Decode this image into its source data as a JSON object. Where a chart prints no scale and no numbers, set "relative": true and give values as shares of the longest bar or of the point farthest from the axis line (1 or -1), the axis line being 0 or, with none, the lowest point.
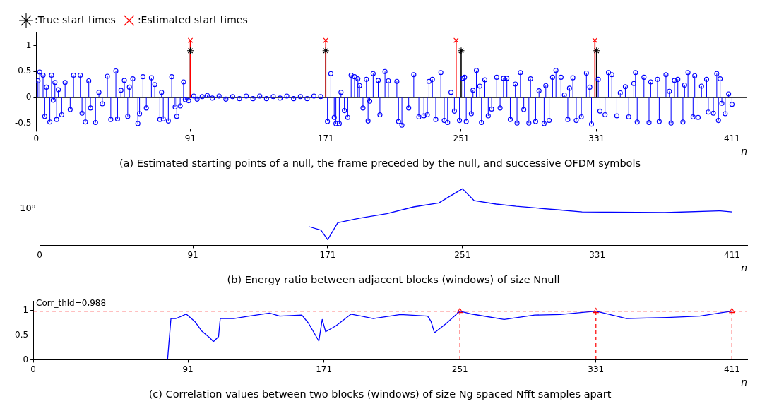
{
  "chart_data": [
    {
      "type": "lollipop",
      "title": "(a) Estimated starting points of a null, the frame preceded by the null, and successive OFDM symbols",
      "xlabel": "n",
      "legend": "top left",
      "xlim": [
        0,
        420
      ],
      "xticks": [
        0,
        91,
        171,
        251,
        331,
        411
      ],
      "ylim": [
        -0.6,
        1.25
      ],
      "yticks": [
        -0.5,
        0,
        0.5,
        1
      ],
      "series": [
        {
          "color": "#0000ff",
          "marker": "circle",
          "x": [
            1,
            2,
            4,
            5,
            6,
            8,
            9,
            10,
            11,
            12,
            13,
            15,
            17,
            20,
            22,
            26,
            27,
            29,
            31,
            32,
            35,
            37,
            39,
            42,
            44,
            47,
            48,
            50,
            52,
            54,
            55,
            57,
            60,
            61,
            63,
            65,
            68,
            70,
            73,
            74,
            75,
            78,
            80,
            82,
            83,
            85,
            87,
            88,
            90,
            93,
            95,
            98,
            101,
            104,
            108,
            112,
            116,
            120,
            124,
            128,
            132,
            136,
            140,
            144,
            148,
            152,
            156,
            160,
            164,
            168,
            172,
            174,
            176,
            177,
            179,
            180,
            182,
            184,
            186,
            188,
            190,
            191,
            193,
            195,
            196,
            197,
            199,
            202,
            203,
            206,
            208,
            213,
            214,
            216,
            220,
            223,
            226,
            229,
            231,
            232,
            234,
            236,
            239,
            241,
            243,
            245,
            247,
            250,
            252,
            253,
            254,
            257,
            258,
            260,
            262,
            263,
            265,
            267,
            269,
            272,
            274,
            276,
            278,
            280,
            283,
            284,
            286,
            288,
            291,
            292,
            295,
            297,
            300,
            301,
            303,
            305,
            307,
            310,
            312,
            314,
            315,
            317,
            319,
            322,
            325,
            327,
            328,
            332,
            333,
            336,
            338,
            340,
            343,
            345,
            348,
            350,
            353,
            354,
            355,
            359,
            362,
            363,
            367,
            368,
            372,
            374,
            375,
            377,
            379,
            382,
            383,
            385,
            388,
            389,
            391,
            393,
            396,
            397,
            400,
            402,
            403,
            404,
            405,
            407,
            409,
            411
          ],
          "values": [
            0.32,
            0.49,
            0.43,
            -0.36,
            0.2,
            -0.47,
            0.43,
            -0.05,
            0.29,
            -0.42,
            0.15,
            -0.33,
            0.29,
            -0.23,
            0.43,
            0.43,
            -0.3,
            -0.47,
            0.32,
            -0.2,
            -0.48,
            0.1,
            -0.12,
            0.41,
            -0.42,
            0.51,
            -0.41,
            0.14,
            0.33,
            -0.36,
            0.2,
            0.36,
            -0.5,
            -0.31,
            0.4,
            -0.2,
            0.38,
            0.25,
            -0.42,
            0.1,
            -0.41,
            -0.45,
            0.4,
            -0.18,
            -0.36,
            -0.16,
            0.3,
            -0.04,
            -0.06,
            0.03,
            -0.03,
            0.02,
            0.04,
            -0.01,
            0.03,
            -0.03,
            0.02,
            -0.02,
            0.03,
            -0.02,
            0.03,
            -0.02,
            0.02,
            -0.01,
            0.03,
            -0.02,
            0.02,
            -0.02,
            0.03,
            0.02,
            -0.46,
            0.46,
            -0.38,
            -0.5,
            -0.5,
            0.1,
            -0.25,
            -0.38,
            0.43,
            0.4,
            0.36,
            0.23,
            -0.2,
            0.35,
            -0.45,
            -0.07,
            0.46,
            0.33,
            -0.33,
            0.5,
            0.32,
            0.31,
            -0.46,
            -0.53,
            -0.2,
            0.44,
            -0.37,
            -0.35,
            -0.33,
            0.31,
            0.35,
            -0.42,
            0.48,
            -0.44,
            -0.48,
            0.1,
            -0.26,
            -0.44,
            0.37,
            0.39,
            -0.46,
            -0.31,
            0.14,
            0.52,
            0.22,
            -0.48,
            0.34,
            -0.35,
            -0.22,
            0.39,
            -0.2,
            0.37,
            0.37,
            -0.42,
            0.26,
            -0.49,
            0.48,
            -0.23,
            -0.49,
            0.36,
            -0.46,
            0.13,
            -0.5,
            0.23,
            -0.44,
            0.39,
            0.52,
            0.39,
            0.05,
            -0.42,
            0.18,
            0.38,
            -0.44,
            -0.37,
            0.47,
            0.2,
            -0.51,
            0.35,
            -0.26,
            -0.33,
            0.48,
            0.44,
            -0.35,
            0.09,
            0.21,
            -0.37,
            0.27,
            0.48,
            -0.47,
            0.39,
            -0.48,
            0.3,
            0.35,
            -0.46,
            0.44,
            0.12,
            -0.49,
            0.33,
            0.35,
            -0.47,
            0.24,
            0.48,
            -0.37,
            0.42,
            -0.38,
            0.22,
            0.35,
            -0.28,
            -0.3,
            0.46,
            -0.44,
            0.36,
            -0.11,
            -0.31,
            0.07,
            -0.13
          ]
        },
        {
          "name": ":True start times",
          "color": "#000000",
          "x": [
            91,
            171,
            251,
            331
          ],
          "values": [
            0.9,
            0.9,
            0.9,
            0.9
          ]
        },
        {
          "name": ":Estimated start times",
          "color": "#ff0000",
          "marker": "cross",
          "x": [
            91,
            171,
            248,
            330
          ],
          "values": [
            1.1,
            1.1,
            1.1,
            1.1
          ]
        }
      ]
    },
    {
      "type": "line",
      "title": "(b) Energy ratio between adjacent blocks (windows) of size Nnull",
      "xlabel": "n",
      "relative": true,
      "annotations": [
        "10⁰"
      ],
      "xlim": [
        0,
        420
      ],
      "xticks": [
        0,
        91,
        171,
        251,
        331,
        411
      ],
      "series": [
        {
          "color": "#0000ff",
          "x": [
            160,
            167,
            171,
            177,
            188,
            206,
            222,
            237,
            243,
            251,
            258,
            271,
            283,
            307,
            322,
            371,
            404,
            411
          ],
          "values": [
            0.33,
            0.27,
            0.1,
            0.4,
            0.47,
            0.56,
            0.68,
            0.75,
            0.86,
            1,
            0.79,
            0.73,
            0.69,
            0.63,
            0.59,
            0.58,
            0.61,
            0.59
          ]
        }
      ]
    },
    {
      "type": "line",
      "title": "(c) Correlation values between two blocks (windows) of size Ng spaced Nfft samples apart",
      "xlabel": "n",
      "xlim": [
        0,
        420
      ],
      "xticks": [
        0,
        91,
        171,
        251,
        331,
        411
      ],
      "ylim": [
        0,
        1.2
      ],
      "yticks": [
        0,
        0.5,
        1
      ],
      "ref_lines": [
        {
          "axis": "y",
          "value": 0.988,
          "label": "Corr_thld=0,988",
          "color": "#ff0000",
          "line_style": "dashed"
        },
        {
          "axis": "x",
          "value": 251,
          "color": "#ff0000",
          "line_style": "dashed"
        },
        {
          "axis": "x",
          "value": 331,
          "color": "#ff0000",
          "line_style": "dashed"
        },
        {
          "axis": "x",
          "value": 411,
          "color": "#ff0000",
          "line_style": "dashed"
        }
      ],
      "series": [
        {
          "color": "#0000ff",
          "x": [
            79,
            81,
            84,
            90,
            95,
            99,
            104,
            106,
            109,
            110,
            118,
            127,
            139,
            145,
            158,
            162,
            168,
            170,
            172,
            178,
            187,
            200,
            216,
            232,
            234,
            236,
            243,
            251,
            258,
            277,
            295,
            310,
            331,
            349,
            373,
            392,
            411
          ],
          "values": [
            0,
            0.84,
            0.84,
            0.93,
            0.78,
            0.59,
            0.44,
            0.37,
            0.47,
            0.84,
            0.84,
            0.89,
            0.95,
            0.89,
            0.91,
            0.74,
            0.38,
            0.82,
            0.57,
            0.69,
            0.93,
            0.84,
            0.92,
            0.89,
            0.78,
            0.55,
            0.74,
            0.99,
            0.93,
            0.82,
            0.91,
            0.92,
            0.99,
            0.84,
            0.86,
            0.89,
            0.99
          ]
        },
        {
          "type": "scatter",
          "color": "#ff0000",
          "marker": "triangle",
          "x": [
            251,
            331,
            411
          ],
          "values": [
            0.99,
            0.99,
            0.99
          ]
        }
      ]
    }
  ]
}
